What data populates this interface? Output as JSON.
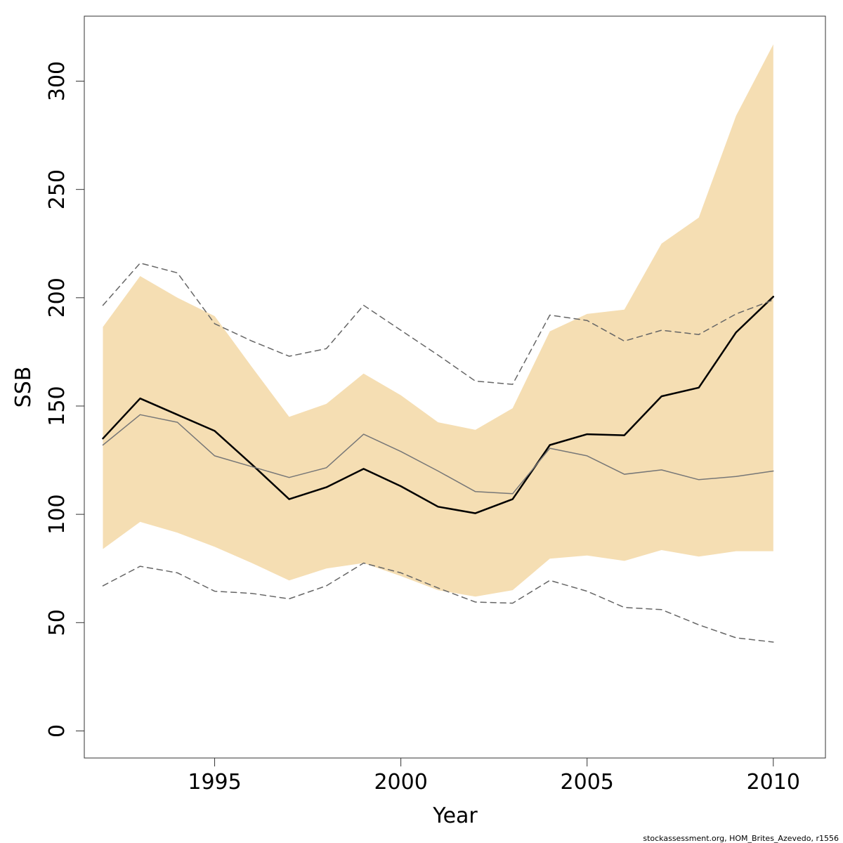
{
  "chart_data": {
    "type": "line",
    "xlabel": "Year",
    "ylabel": "SSB",
    "xlim": [
      1991.5,
      2011.4
    ],
    "ylim": [
      -12.5,
      330
    ],
    "xticks": [
      1995,
      2000,
      2005,
      2010
    ],
    "yticks": [
      0,
      50,
      100,
      150,
      200,
      250,
      300
    ],
    "grid": false,
    "legend": "none",
    "x": [
      1992,
      1993,
      1994,
      1995,
      1996,
      1997,
      1998,
      1999,
      2000,
      2001,
      2002,
      2003,
      2004,
      2005,
      2006,
      2007,
      2008,
      2009,
      2010
    ],
    "band": {
      "color": "#f5deb3",
      "lower": [
        84,
        96.5,
        91.5,
        85,
        77.5,
        69.5,
        75,
        77.5,
        71.5,
        65,
        62,
        65,
        79.5,
        81,
        78.5,
        83.5,
        80.5,
        83,
        83
      ],
      "upper": [
        186.5,
        210,
        200,
        191.5,
        168,
        145,
        151,
        165,
        155,
        142.5,
        139,
        149,
        184.5,
        192.5,
        194.5,
        225,
        237,
        284,
        317
      ]
    },
    "series": [
      {
        "style": "solid-thick",
        "color": "#000000",
        "values": [
          135,
          153.5,
          146,
          138.5,
          123,
          107,
          112.5,
          121,
          113,
          103.5,
          100.5,
          107,
          132,
          137,
          136.5,
          154.5,
          158.5,
          184,
          200.5
        ]
      },
      {
        "style": "solid-thin",
        "color": "#777777",
        "values": [
          132,
          146,
          142.5,
          127,
          122,
          117,
          121.5,
          137,
          129,
          120,
          110.5,
          109.5,
          130.5,
          127,
          118.5,
          120.5,
          116,
          117.5,
          120
        ]
      },
      {
        "style": "dashed",
        "color": "#666666",
        "values": [
          196.5,
          216,
          211.5,
          188,
          180,
          173,
          176.5,
          196.5,
          185,
          173.5,
          161.5,
          160,
          192,
          189.5,
          180,
          185,
          183,
          192.5,
          199
        ]
      },
      {
        "style": "dashed",
        "color": "#666666",
        "values": [
          67,
          76,
          73,
          64.5,
          63.5,
          61,
          67,
          77.5,
          73,
          66,
          59.5,
          59,
          69.5,
          64.5,
          57,
          56,
          49,
          43,
          41
        ]
      }
    ],
    "credit": "stockassessment.org, HOM_Brites_Azevedo, r1556"
  }
}
